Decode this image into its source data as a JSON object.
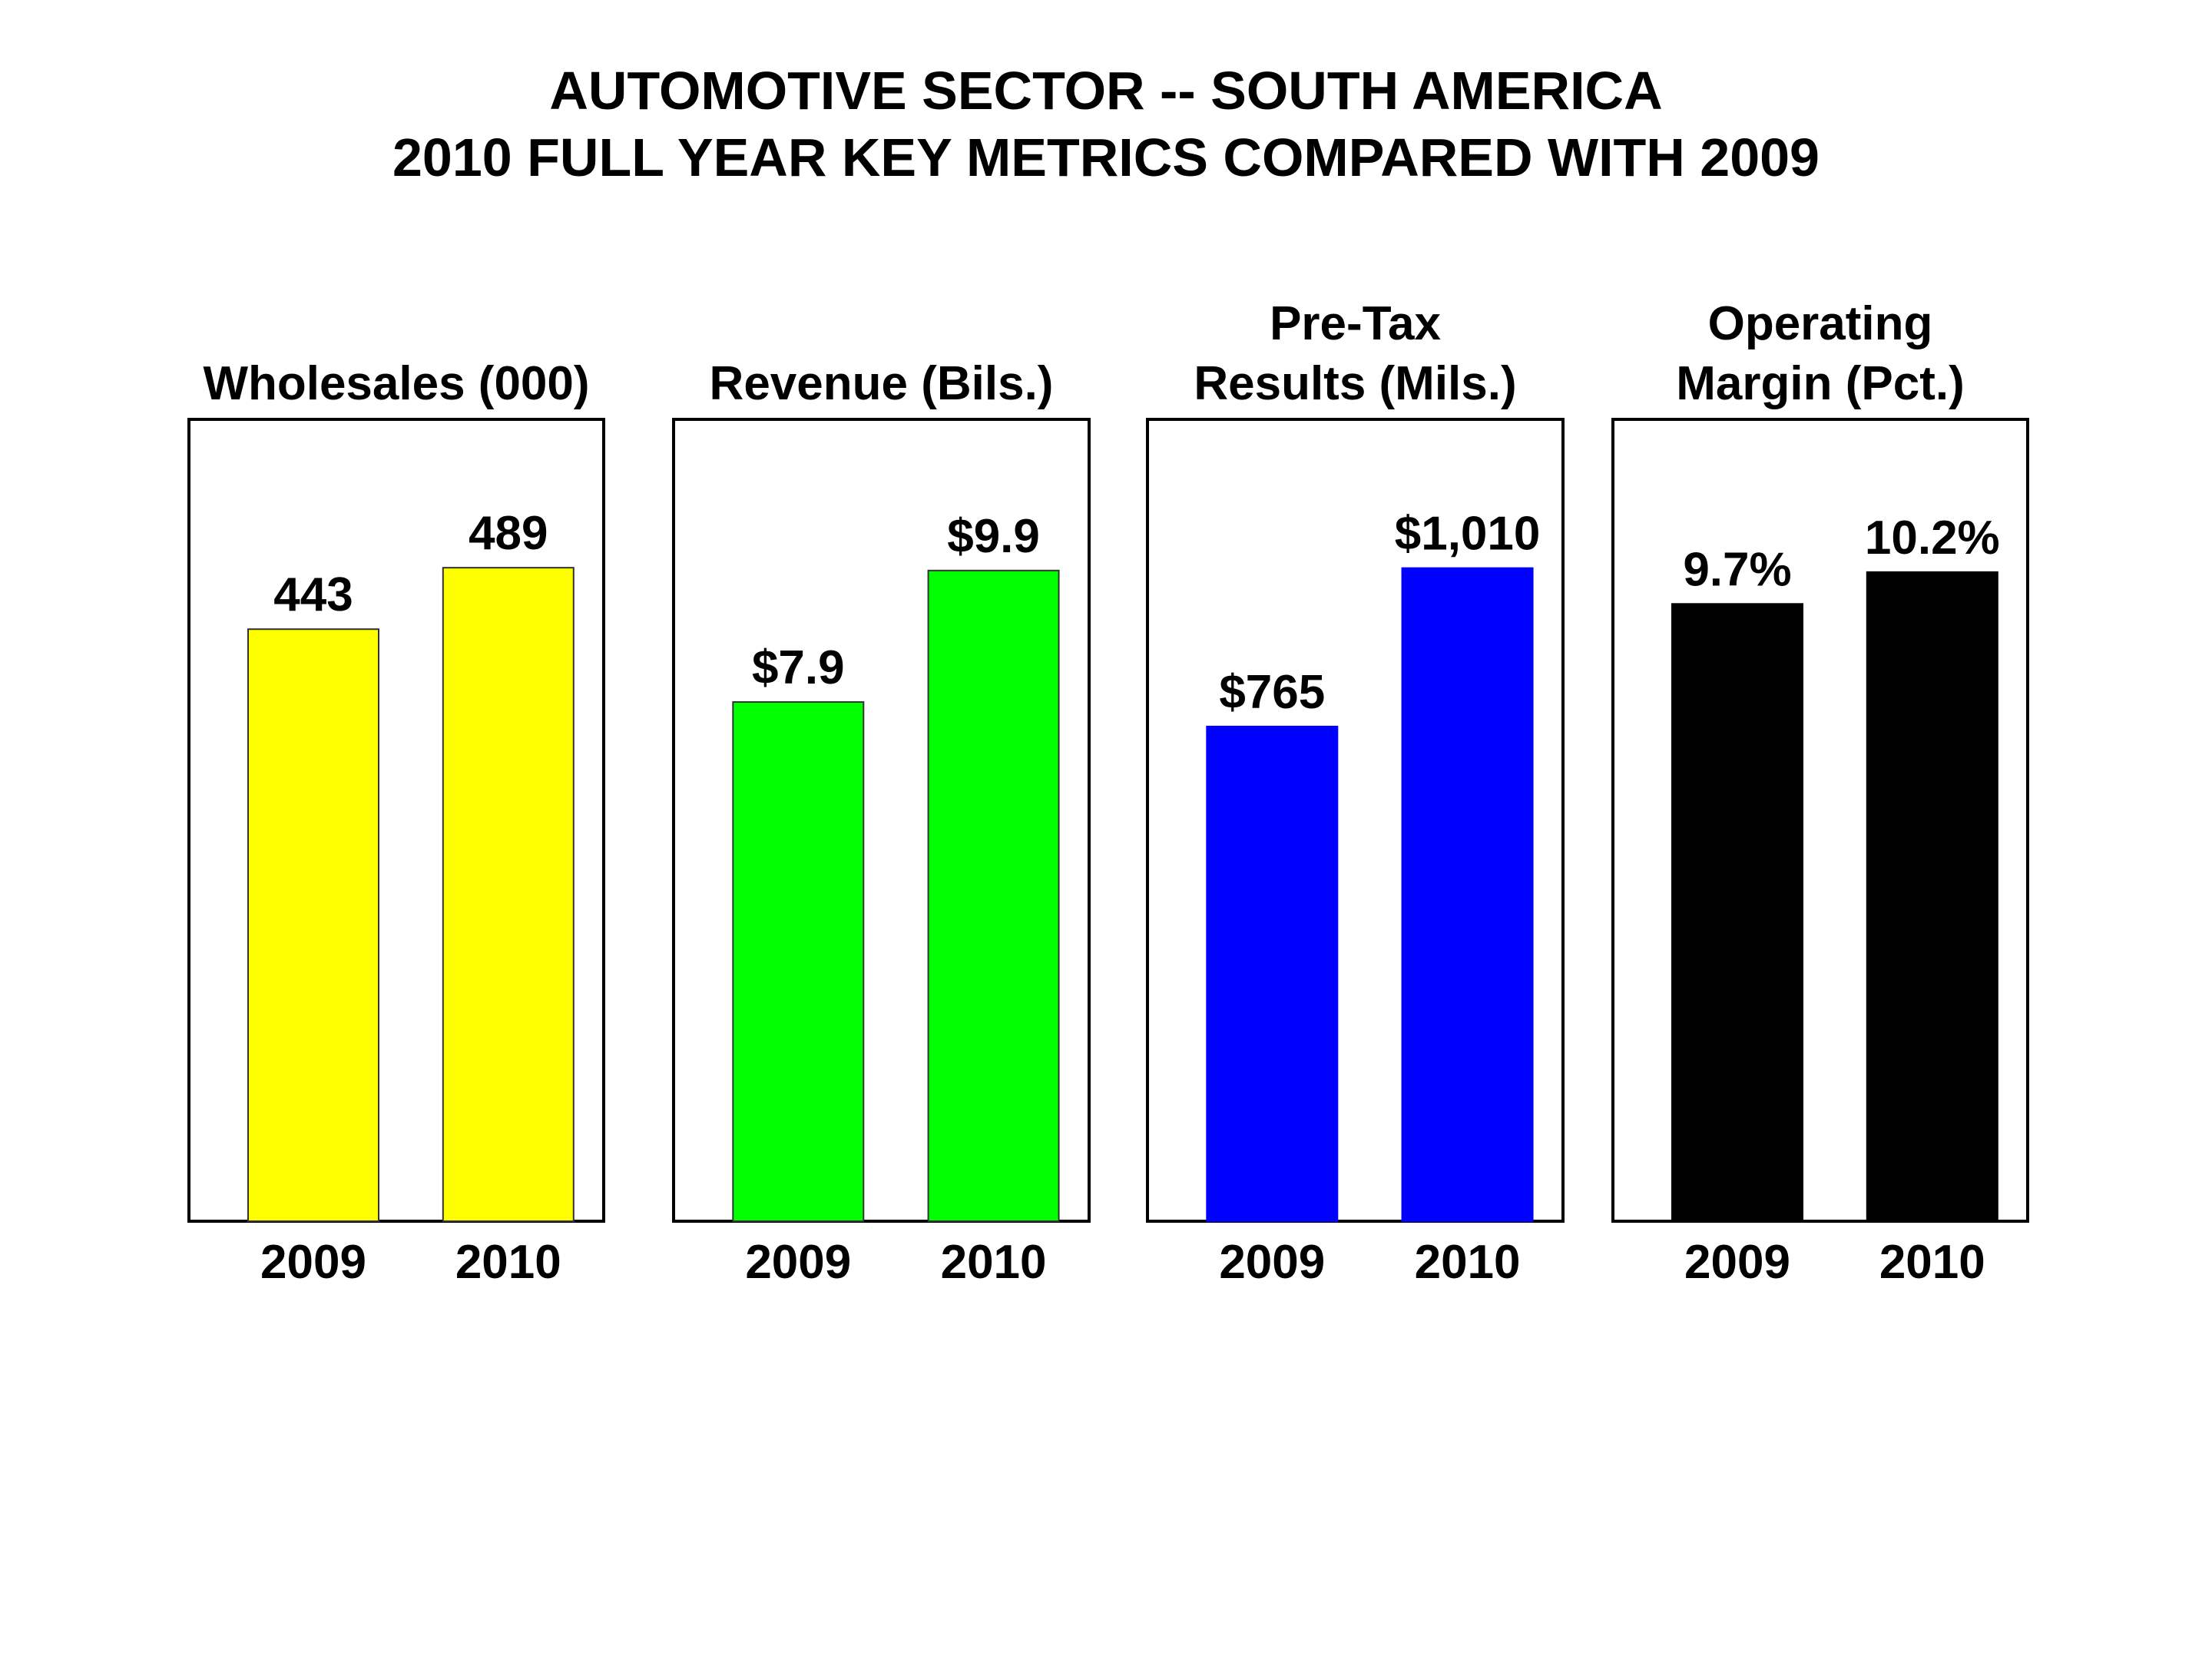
{
  "title": "AUTOMOTIVE SECTOR -- SOUTH AMERICA",
  "subtitle": "2010 FULL YEAR KEY METRICS COMPARED WITH 2009",
  "chart_data": [
    {
      "type": "bar",
      "title": [
        "Wholesales (000)"
      ],
      "categories": [
        "2009",
        "2010"
      ],
      "values": [
        443,
        489
      ],
      "labels": [
        "443",
        "489"
      ],
      "color": "#ffff00",
      "ylim": [
        0,
        600
      ]
    },
    {
      "type": "bar",
      "title": [
        "Revenue (Bils.)"
      ],
      "categories": [
        "2009",
        "2010"
      ],
      "values": [
        7.9,
        9.9
      ],
      "labels": [
        "$7.9",
        "$9.9"
      ],
      "color": "#00ff00",
      "ylim": [
        0,
        12.2
      ]
    },
    {
      "type": "bar",
      "title": [
        "Pre-Tax",
        "Results (Mils.)"
      ],
      "categories": [
        "2009",
        "2010"
      ],
      "values": [
        765,
        1010
      ],
      "labels": [
        "$765",
        "$1,010"
      ],
      "color": "#0000ff",
      "ylim": [
        0,
        1240
      ]
    },
    {
      "type": "bar",
      "title": [
        "Operating",
        "Margin (Pct.)"
      ],
      "categories": [
        "2009",
        "2010"
      ],
      "values": [
        9.7,
        10.2
      ],
      "labels": [
        "9.7%",
        "10.2%"
      ],
      "color": "#000000",
      "ylim": [
        0,
        12.6
      ]
    }
  ]
}
